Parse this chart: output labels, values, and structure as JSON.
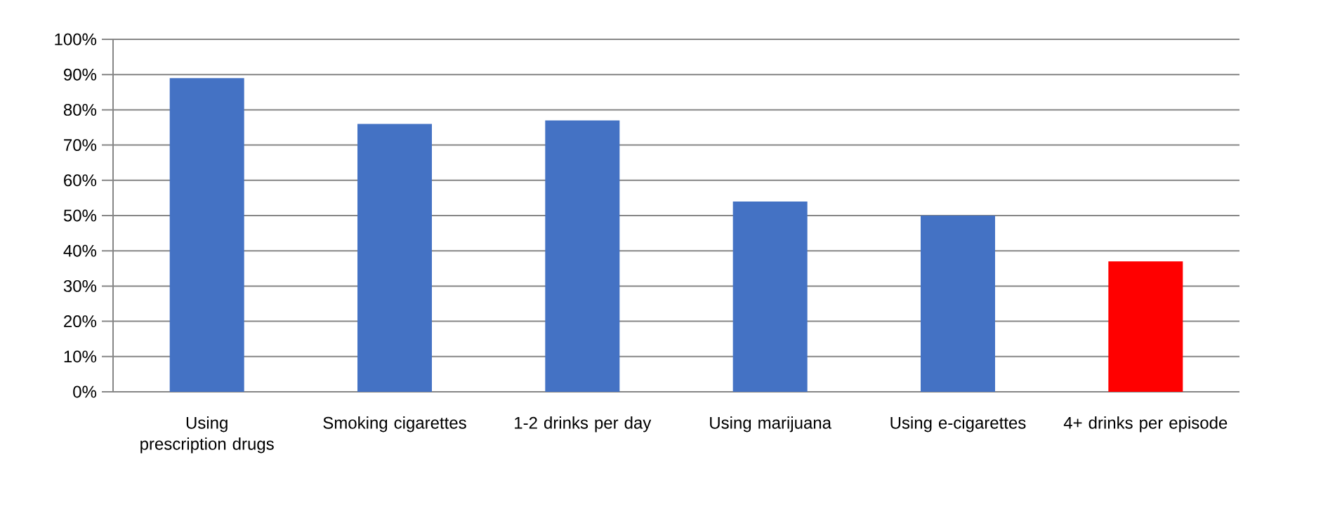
{
  "chart_data": {
    "type": "bar",
    "categories": [
      "Using prescription drugs",
      "Smoking cigarettes",
      "1-2 drinks per day",
      "Using marijuana",
      "Using e-cigarettes",
      "4+ drinks per episode"
    ],
    "values": [
      89,
      76,
      77,
      54,
      50,
      37
    ],
    "colors": [
      "#4472c4",
      "#4472c4",
      "#4472c4",
      "#4472c4",
      "#4472c4",
      "#ff0000"
    ],
    "ylim": [
      0,
      100
    ],
    "yticks": [
      {
        "value": 0,
        "label": "0%"
      },
      {
        "value": 10,
        "label": "10%"
      },
      {
        "value": 20,
        "label": "20%"
      },
      {
        "value": 30,
        "label": "30%"
      },
      {
        "value": 40,
        "label": "40%"
      },
      {
        "value": 50,
        "label": "50%"
      },
      {
        "value": 60,
        "label": "60%"
      },
      {
        "value": 70,
        "label": "70%"
      },
      {
        "value": 80,
        "label": "80%"
      },
      {
        "value": 90,
        "label": "90%"
      },
      {
        "value": 100,
        "label": "100%"
      }
    ],
    "grid": "y"
  }
}
